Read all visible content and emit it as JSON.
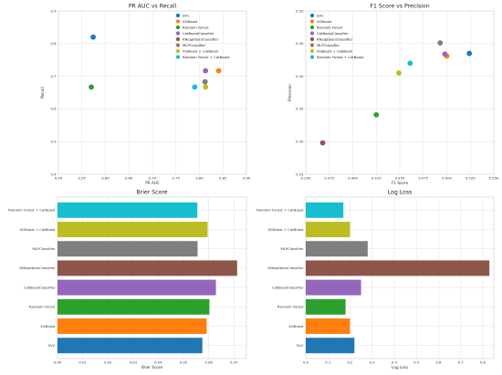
{
  "colors": {
    "SVC": "#1f77b4",
    "XGBoost": "#ff7f0e",
    "Random Forest": "#2ca02c",
    "CatBoostClassifier": "#9467bd",
    "KNeighborsClassifier": "#8c564b",
    "MLPClassifier": "#7f7f7f",
    "XGBoost + CatBoost": "#bcbd22",
    "Random Forest + CatBoost": "#17becf"
  },
  "chart_data": [
    {
      "type": "scatter",
      "title": "PR AUC vs Recall",
      "xlabel": "PR AUC",
      "ylabel": "Recall",
      "xlim": [
        0.5,
        0.9
      ],
      "ylim": [
        0.4,
        0.9
      ],
      "x_ticks": [
        "0.50",
        "0.55",
        "0.60",
        "0.65",
        "0.70",
        "0.75",
        "0.80",
        "0.85",
        "0.90"
      ],
      "y_ticks": [
        "0.4",
        "0.5",
        "0.6",
        "0.7",
        "0.8",
        "0.9"
      ],
      "legend_position": "upper-right",
      "grid": true,
      "points": [
        {
          "name": "SVC",
          "x": 0.574,
          "y": 0.82
        },
        {
          "name": "XGBoost",
          "x": 0.841,
          "y": 0.717
        },
        {
          "name": "Random Forest",
          "x": 0.57,
          "y": 0.667
        },
        {
          "name": "CatBoostClassifier",
          "x": 0.813,
          "y": 0.717
        },
        {
          "name": "KNeighborsClassifier",
          "x": 0.812,
          "y": 0.683
        },
        {
          "name": "MLPClassifier",
          "x": 0.812,
          "y": 0.683
        },
        {
          "name": "XGBoost + CatBoost",
          "x": 0.813,
          "y": 0.667
        },
        {
          "name": "Random Forest + CatBoost",
          "x": 0.79,
          "y": 0.667
        }
      ]
    },
    {
      "type": "scatter",
      "title": "F1 Score vs Precision",
      "xlabel": "F1 Score",
      "ylabel": "Precision",
      "xlim": [
        0.35,
        0.55
      ],
      "ylim": [
        0.25,
        0.5
      ],
      "x_ticks": [
        "0.350",
        "0.375",
        "0.400",
        "0.425",
        "0.450",
        "0.475",
        "0.500",
        "0.525",
        "0.550"
      ],
      "y_ticks": [
        "0.25",
        "0.30",
        "0.35",
        "0.40",
        "0.45",
        "0.50"
      ],
      "legend_position": "upper-left",
      "grid": true,
      "points": [
        {
          "name": "SVC",
          "x": 0.524,
          "y": 0.435
        },
        {
          "name": "XGBoost",
          "x": 0.5,
          "y": 0.431
        },
        {
          "name": "Random Forest",
          "x": 0.425,
          "y": 0.341
        },
        {
          "name": "CatBoostClassifier",
          "x": 0.498,
          "y": 0.434
        },
        {
          "name": "KNeighborsClassifier",
          "x": 0.368,
          "y": 0.298
        },
        {
          "name": "MLPClassifier",
          "x": 0.493,
          "y": 0.451
        },
        {
          "name": "XGBoost + CatBoost",
          "x": 0.449,
          "y": 0.405
        },
        {
          "name": "Random Forest + CatBoost",
          "x": 0.461,
          "y": 0.42
        }
      ]
    },
    {
      "type": "bar",
      "orientation": "horizontal",
      "title": "Brier Score",
      "xlabel": "Brier Score",
      "ylabel": "",
      "xlim": [
        0,
        0.075
      ],
      "x_ticks": [
        "0.00",
        "0.01",
        "0.02",
        "0.03",
        "0.04",
        "0.05",
        "0.06",
        "0.07"
      ],
      "grid": true,
      "categories": [
        "SVC",
        "XGBoost",
        "Random Forest",
        "CatBoostClassifier",
        "KNeighborsClassifier",
        "MLPClassifier",
        "XGBoost + CatBoost",
        "Random Forest + CatBoost"
      ],
      "values": [
        0.0575,
        0.0592,
        0.0603,
        0.0629,
        0.0713,
        0.0556,
        0.0596,
        0.0555
      ]
    },
    {
      "type": "bar",
      "orientation": "horizontal",
      "title": "Log Loss",
      "xlabel": "Log Loss",
      "ylabel": "",
      "xlim": [
        0,
        0.85
      ],
      "x_ticks": [
        "0.0",
        "0.1",
        "0.2",
        "0.3",
        "0.4",
        "0.5",
        "0.6",
        "0.7",
        "0.8"
      ],
      "grid": true,
      "categories": [
        "SVC",
        "XGBoost",
        "Random Forest",
        "CatBoostClassifier",
        "KNeighborsClassifier",
        "MLPClassifier",
        "XGBoost + CatBoost",
        "Random Forest + CatBoost"
      ],
      "values": [
        0.22,
        0.2,
        0.18,
        0.25,
        0.83,
        0.28,
        0.2,
        0.17
      ]
    }
  ]
}
